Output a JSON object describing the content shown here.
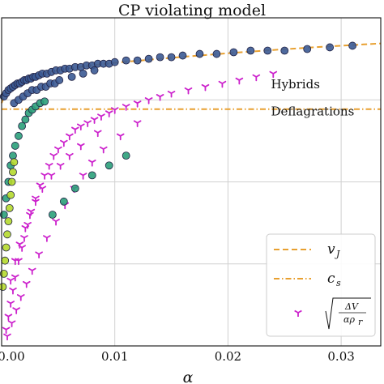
{
  "chart_data": {
    "type": "scatter",
    "title": "CP violating model",
    "xlabel": "α",
    "ylabel": "",
    "xlim": [
      0.0,
      0.0335
    ],
    "ylim": [
      0.0,
      1.0
    ],
    "xticks": [
      "0.00",
      "0.01",
      "0.02",
      "0.03"
    ],
    "xtick_values": [
      0.0,
      0.01,
      0.02,
      0.03
    ],
    "ytick_values": [
      0.25,
      0.5,
      0.75
    ],
    "grid": true,
    "legend_position": "bottom-right",
    "annotations": [
      {
        "text": "Hybrids",
        "x": 0.0238,
        "y": 0.785
      },
      {
        "text": "Deflagrations",
        "x": 0.0238,
        "y": 0.703
      }
    ],
    "series": [
      {
        "name": "v_J",
        "kind": "dashed-line",
        "color": "#e8a030",
        "x": [
          0.0,
          0.0003,
          0.0006,
          0.001,
          0.0015,
          0.002,
          0.003,
          0.004,
          0.006,
          0.008,
          0.01,
          0.013,
          0.016,
          0.02,
          0.024,
          0.028,
          0.032,
          0.0335
        ],
        "y": [
          0.74,
          0.767,
          0.783,
          0.796,
          0.807,
          0.815,
          0.826,
          0.834,
          0.846,
          0.855,
          0.863,
          0.872,
          0.881,
          0.892,
          0.902,
          0.911,
          0.919,
          0.922
        ]
      },
      {
        "name": "c_s",
        "kind": "dashdot-line",
        "color": "#e8a030",
        "x": [
          0.0,
          0.0335
        ],
        "y": [
          0.7217,
          0.7217
        ]
      },
      {
        "name": "ΔV/(α ρ_r)",
        "kind": "tri-marker",
        "color": "#cc22cc",
        "x": [
          0.0004,
          0.0006,
          0.0008,
          0.001,
          0.0012,
          0.0015,
          0.0018,
          0.002,
          0.0023,
          0.0026,
          0.003,
          0.0034,
          0.0038,
          0.0042,
          0.0046,
          0.005,
          0.0055,
          0.006,
          0.0065,
          0.007,
          0.0076,
          0.0082,
          0.0088,
          0.0095,
          0.01,
          0.011,
          0.012,
          0.013,
          0.014,
          0.015,
          0.0165,
          0.018,
          0.0195,
          0.021,
          0.0225,
          0.024,
          0.0005,
          0.0009,
          0.0013,
          0.0017,
          0.0022,
          0.0027,
          0.0033,
          0.004,
          0.0048,
          0.0056,
          0.0064,
          0.0072,
          0.008,
          0.009,
          0.0105,
          0.012,
          0.0008,
          0.0012,
          0.0016,
          0.0021,
          0.0025,
          0.003,
          0.0036,
          0.0044,
          0.0052,
          0.006,
          0.007,
          0.0085
        ],
        "y": [
          0.05,
          0.09,
          0.13,
          0.17,
          0.21,
          0.26,
          0.3,
          0.33,
          0.37,
          0.41,
          0.45,
          0.49,
          0.52,
          0.55,
          0.58,
          0.6,
          0.62,
          0.64,
          0.66,
          0.67,
          0.68,
          0.69,
          0.7,
          0.71,
          0.72,
          0.73,
          0.74,
          0.75,
          0.76,
          0.77,
          0.78,
          0.79,
          0.8,
          0.81,
          0.82,
          0.83,
          0.03,
          0.07,
          0.11,
          0.15,
          0.19,
          0.23,
          0.28,
          0.33,
          0.38,
          0.43,
          0.48,
          0.52,
          0.56,
          0.6,
          0.64,
          0.68,
          0.2,
          0.26,
          0.31,
          0.36,
          0.4,
          0.44,
          0.48,
          0.52,
          0.55,
          0.58,
          0.61,
          0.65
        ]
      },
      {
        "name": "",
        "kind": "circle-marker",
        "color": "#3b5a93",
        "x": [
          0.0002,
          0.0004,
          0.0006,
          0.0008,
          0.001,
          0.0012,
          0.0014,
          0.0016,
          0.0018,
          0.002,
          0.0022,
          0.0024,
          0.0026,
          0.0028,
          0.003,
          0.0033,
          0.0036,
          0.004,
          0.0044,
          0.0048,
          0.0052,
          0.0056,
          0.006,
          0.0065,
          0.007,
          0.0075,
          0.008,
          0.0085,
          0.009,
          0.0095,
          0.01,
          0.011,
          0.012,
          0.013,
          0.014,
          0.015,
          0.016,
          0.0175,
          0.019,
          0.0205,
          0.022,
          0.0235,
          0.025,
          0.027,
          0.029,
          0.031,
          0.0011,
          0.0015,
          0.0019,
          0.0023,
          0.0027,
          0.0031,
          0.0035,
          0.0039,
          0.0043,
          0.0047,
          0.0051,
          0.0062,
          0.0072,
          0.0082
        ],
        "y": [
          0.76,
          0.77,
          0.78,
          0.785,
          0.79,
          0.795,
          0.8,
          0.8,
          0.805,
          0.81,
          0.81,
          0.815,
          0.815,
          0.82,
          0.82,
          0.825,
          0.83,
          0.83,
          0.835,
          0.84,
          0.84,
          0.845,
          0.845,
          0.85,
          0.85,
          0.855,
          0.855,
          0.86,
          0.86,
          0.86,
          0.865,
          0.87,
          0.87,
          0.875,
          0.88,
          0.88,
          0.885,
          0.89,
          0.89,
          0.895,
          0.9,
          0.9,
          0.9,
          0.905,
          0.91,
          0.915,
          0.74,
          0.75,
          0.76,
          0.77,
          0.78,
          0.78,
          0.79,
          0.79,
          0.8,
          0.8,
          0.81,
          0.82,
          0.83,
          0.84
        ]
      },
      {
        "name": "",
        "kind": "circle-marker",
        "color": "#2ba07a",
        "x": [
          0.0002,
          0.0004,
          0.0006,
          0.0008,
          0.001,
          0.0012,
          0.0015,
          0.0018,
          0.0021,
          0.0024,
          0.0027,
          0.003,
          0.0034,
          0.0038,
          0.0045,
          0.0055,
          0.0065,
          0.008,
          0.0095,
          0.011
        ],
        "y": [
          0.4,
          0.45,
          0.5,
          0.55,
          0.58,
          0.61,
          0.64,
          0.67,
          0.69,
          0.71,
          0.72,
          0.73,
          0.74,
          0.745,
          0.4,
          0.44,
          0.48,
          0.52,
          0.55,
          0.58
        ]
      },
      {
        "name": "",
        "kind": "circle-marker",
        "color": "#b5d92e",
        "x": [
          0.0001,
          0.0002,
          0.0003,
          0.0004,
          0.0005,
          0.0006,
          0.0007,
          0.0008,
          0.0009,
          0.001,
          0.0011
        ],
        "y": [
          0.18,
          0.22,
          0.26,
          0.3,
          0.34,
          0.38,
          0.42,
          0.46,
          0.5,
          0.53,
          0.56
        ]
      }
    ],
    "legend": [
      {
        "label": "v_J",
        "main": "v",
        "sub": "J",
        "style": "dashed"
      },
      {
        "label": "c_s",
        "main": "c",
        "sub": "s",
        "style": "dashdot"
      },
      {
        "label": "sqrt(ΔV/(α ρ_r))",
        "num": "ΔV",
        "den": "αρ",
        "den_sub": "r",
        "style": "tri"
      }
    ]
  }
}
